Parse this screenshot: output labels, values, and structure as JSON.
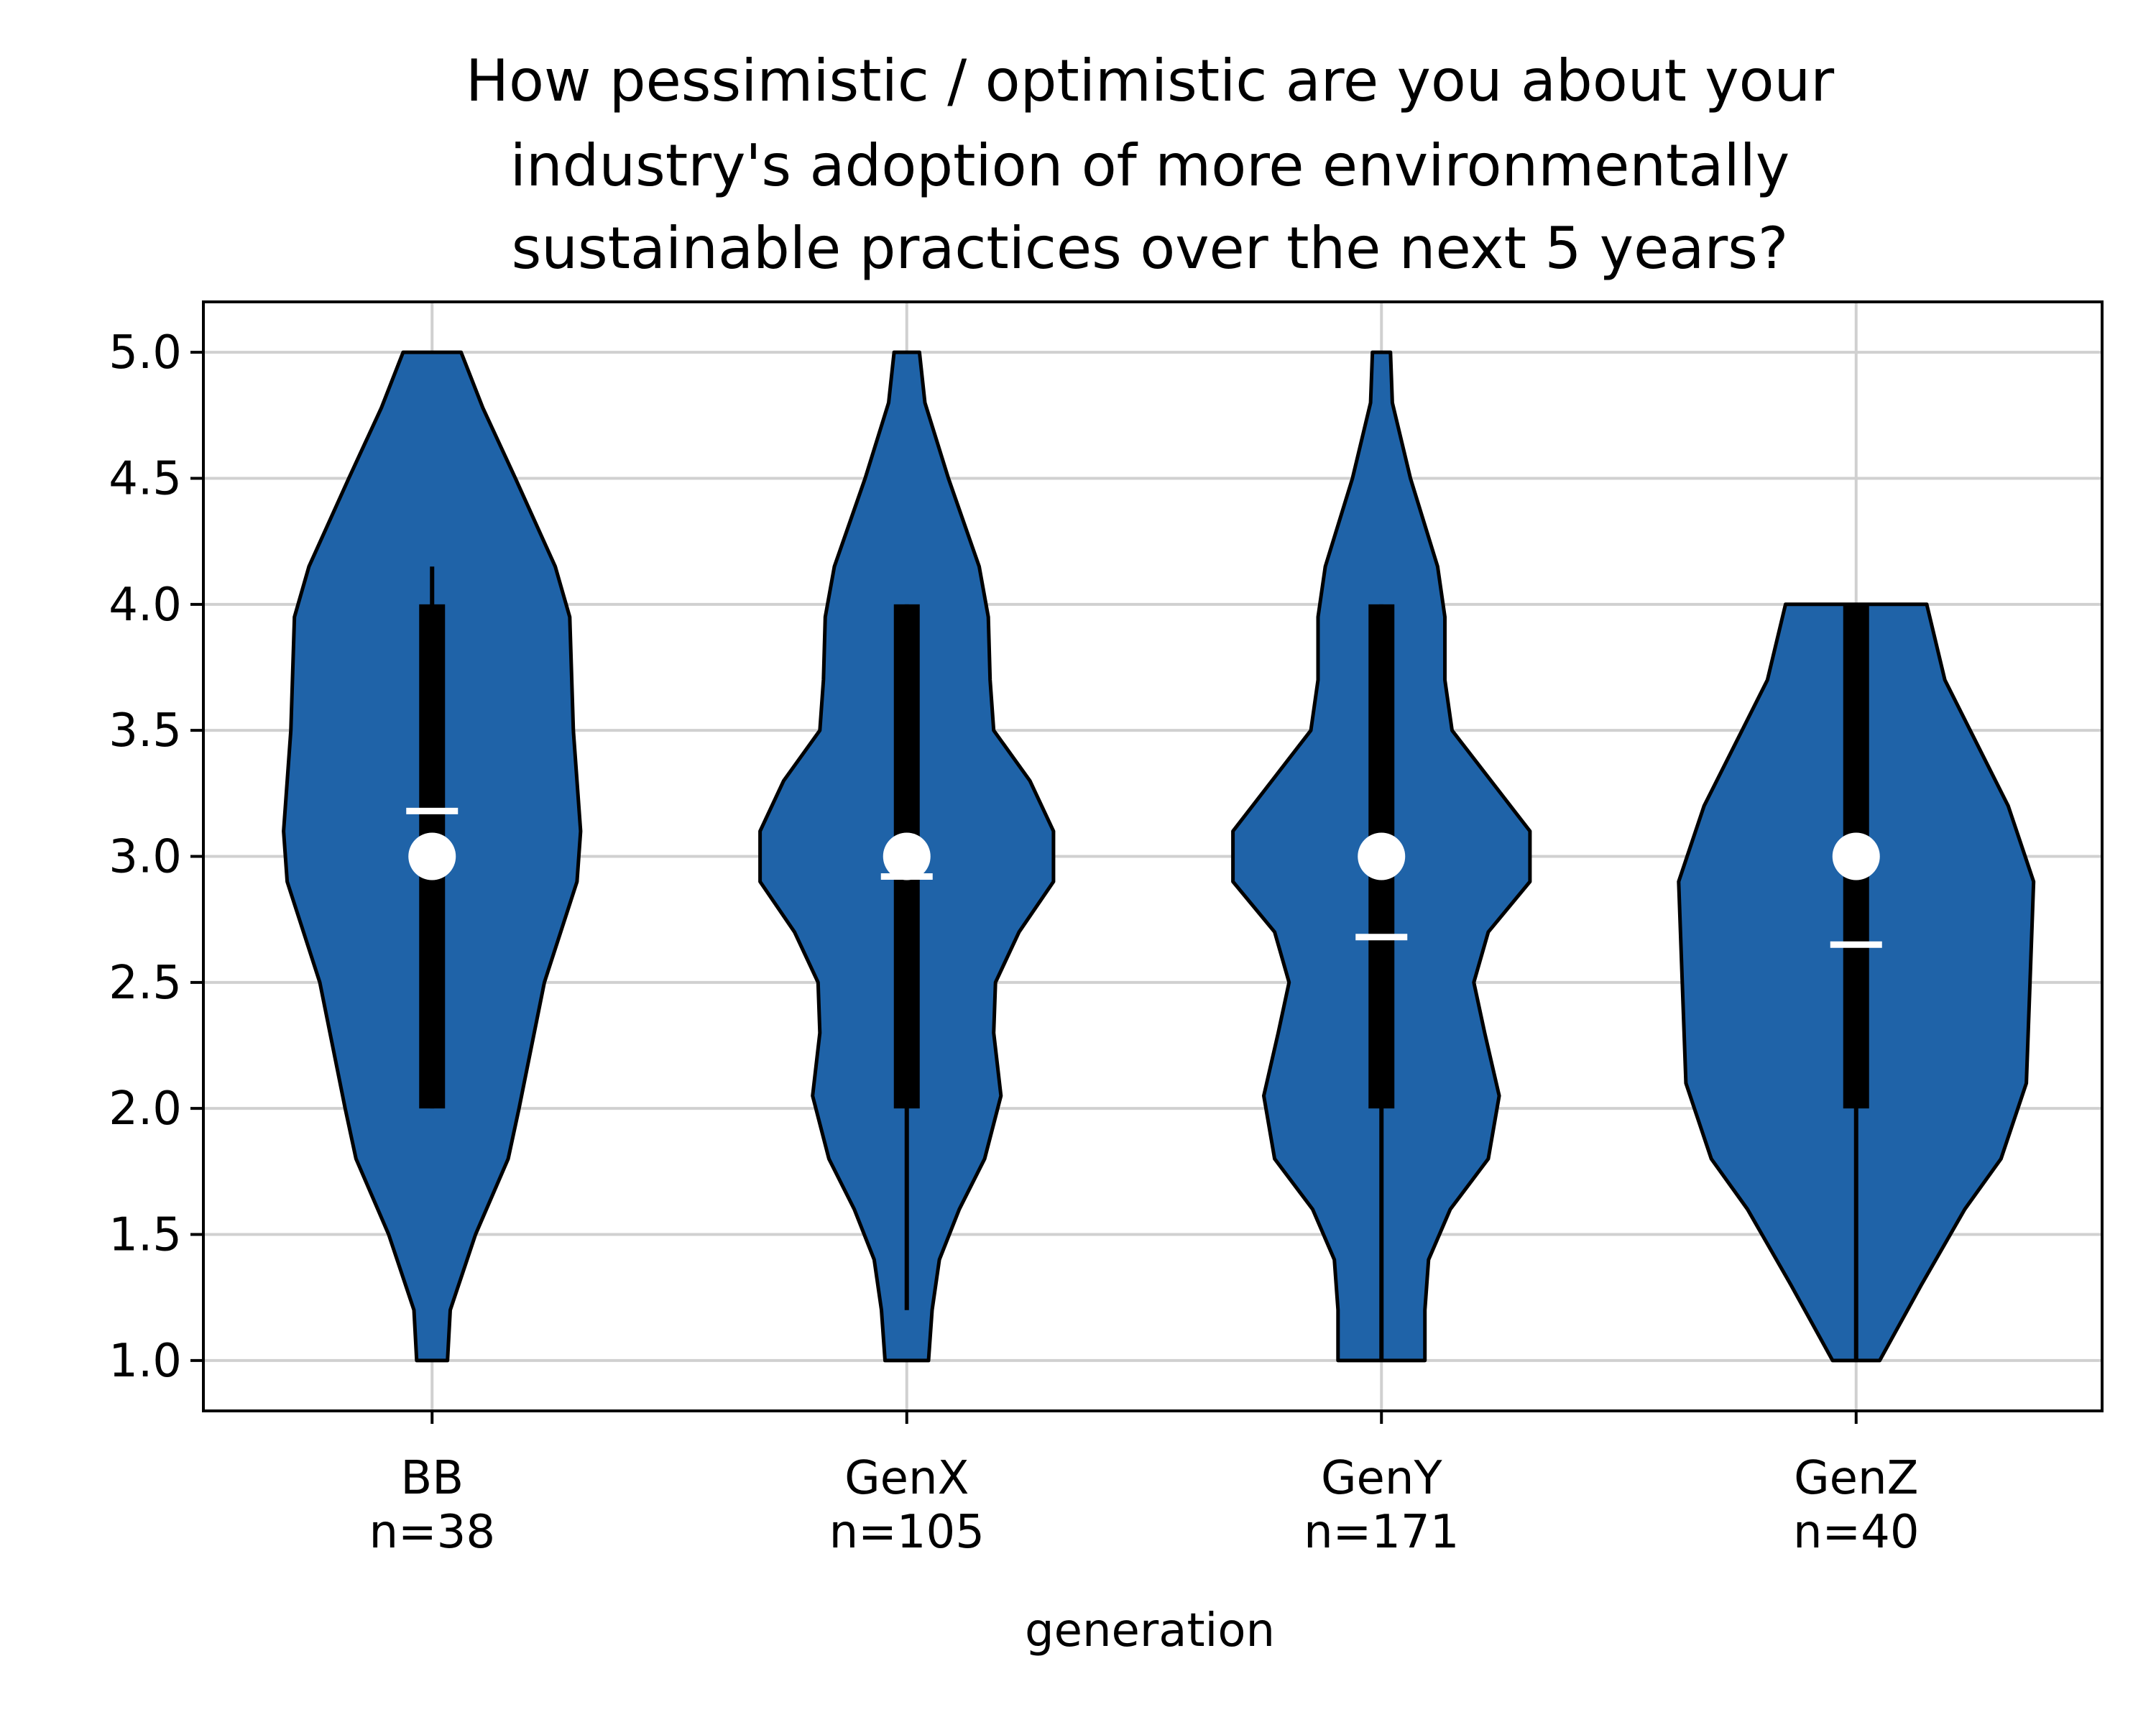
{
  "chart_data": {
    "type": "violin",
    "title_lines": [
      "How pessimistic / optimistic are you about your",
      "industry's adoption of more environmentally",
      "sustainable practices over the next 5 years?"
    ],
    "xlabel": "generation",
    "ylabel": "",
    "ylim": [
      0.8,
      5.2
    ],
    "yticks": [
      "1.0",
      "1.5",
      "2.0",
      "2.5",
      "3.0",
      "3.5",
      "4.0",
      "4.5",
      "5.0"
    ],
    "grid": true,
    "colors": {
      "violin_fill": "#1f63a8",
      "box": "#000000",
      "median_marker": "#ffffff",
      "mean_marker": "#ffffff"
    },
    "groups": [
      {
        "name": "BB",
        "n_label": "n=38",
        "min": 1.0,
        "max": 5.0,
        "q1": 2.0,
        "q3": 4.0,
        "whisker_low": 2.0,
        "whisker_high": 4.15,
        "median": 3.0,
        "mean": 3.18,
        "profile": [
          [
            1.0,
            0.085
          ],
          [
            1.2,
            0.1
          ],
          [
            1.5,
            0.24
          ],
          [
            1.8,
            0.42
          ],
          [
            2.0,
            0.48
          ],
          [
            2.5,
            0.62
          ],
          [
            2.9,
            0.8
          ],
          [
            3.1,
            0.82
          ],
          [
            3.5,
            0.78
          ],
          [
            3.95,
            0.76
          ],
          [
            4.15,
            0.68
          ],
          [
            4.5,
            0.46
          ],
          [
            4.78,
            0.28
          ],
          [
            5.0,
            0.16
          ]
        ]
      },
      {
        "name": "GenX",
        "n_label": "n=105",
        "min": 1.0,
        "max": 5.0,
        "q1": 2.0,
        "q3": 4.0,
        "whisker_low": 1.2,
        "whisker_high": 4.0,
        "median": 3.0,
        "mean": 2.92,
        "profile": [
          [
            1.0,
            0.12
          ],
          [
            1.2,
            0.14
          ],
          [
            1.4,
            0.18
          ],
          [
            1.6,
            0.29
          ],
          [
            1.8,
            0.43
          ],
          [
            2.05,
            0.52
          ],
          [
            2.3,
            0.48
          ],
          [
            2.5,
            0.49
          ],
          [
            2.7,
            0.62
          ],
          [
            2.9,
            0.81
          ],
          [
            3.1,
            0.81
          ],
          [
            3.3,
            0.68
          ],
          [
            3.5,
            0.48
          ],
          [
            3.7,
            0.46
          ],
          [
            3.95,
            0.45
          ],
          [
            4.15,
            0.4
          ],
          [
            4.5,
            0.23
          ],
          [
            4.8,
            0.1
          ],
          [
            5.0,
            0.07
          ]
        ]
      },
      {
        "name": "GenY",
        "n_label": "n=171",
        "min": 1.0,
        "max": 5.0,
        "q1": 2.0,
        "q3": 4.0,
        "whisker_low": 1.0,
        "whisker_high": 4.0,
        "median": 3.0,
        "mean": 2.68,
        "profile": [
          [
            1.0,
            0.24
          ],
          [
            1.2,
            0.24
          ],
          [
            1.4,
            0.26
          ],
          [
            1.6,
            0.38
          ],
          [
            1.8,
            0.59
          ],
          [
            2.05,
            0.65
          ],
          [
            2.3,
            0.57
          ],
          [
            2.5,
            0.51
          ],
          [
            2.7,
            0.59
          ],
          [
            2.9,
            0.82
          ],
          [
            3.1,
            0.82
          ],
          [
            3.5,
            0.39
          ],
          [
            3.7,
            0.35
          ],
          [
            3.95,
            0.35
          ],
          [
            4.15,
            0.31
          ],
          [
            4.5,
            0.16
          ],
          [
            4.8,
            0.06
          ],
          [
            5.0,
            0.05
          ]
        ]
      },
      {
        "name": "GenZ",
        "n_label": "n=40",
        "min": 1.0,
        "max": 4.0,
        "q1": 2.0,
        "q3": 4.0,
        "whisker_low": 1.0,
        "whisker_high": 4.0,
        "median": 3.0,
        "mean": 2.65,
        "profile": [
          [
            1.0,
            0.13
          ],
          [
            1.3,
            0.36
          ],
          [
            1.6,
            0.6
          ],
          [
            1.8,
            0.8
          ],
          [
            2.1,
            0.94
          ],
          [
            2.5,
            0.96
          ],
          [
            2.9,
            0.98
          ],
          [
            3.2,
            0.84
          ],
          [
            3.5,
            0.63
          ],
          [
            3.7,
            0.49
          ],
          [
            4.0,
            0.39
          ]
        ]
      }
    ]
  }
}
